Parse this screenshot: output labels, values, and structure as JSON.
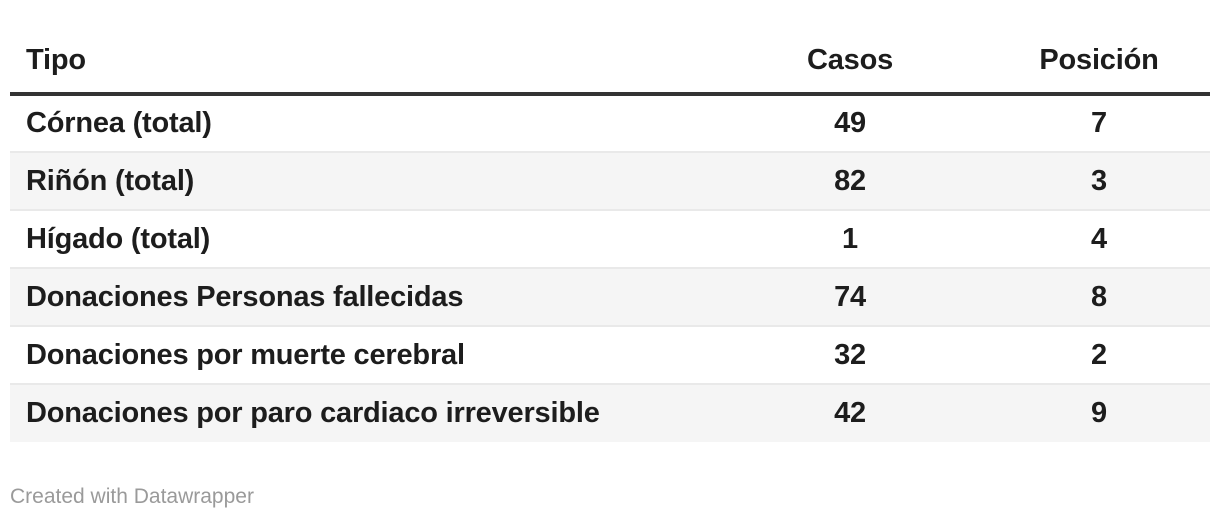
{
  "chart_data": {
    "type": "table",
    "columns": [
      "Tipo",
      "Casos",
      "Posición"
    ],
    "rows": [
      [
        "Córnea (total)",
        49,
        7
      ],
      [
        "Riñón (total)",
        82,
        3
      ],
      [
        "Hígado (total)",
        1,
        4
      ],
      [
        "Donaciones Personas fallecidas",
        74,
        8
      ],
      [
        "Donaciones por muerte cerebral",
        32,
        2
      ],
      [
        "Donaciones por paro cardiaco irreversible",
        42,
        9
      ]
    ],
    "layout": {
      "zebra_striping": true,
      "first_column_align": "left",
      "numeric_columns_align": "center"
    }
  },
  "table": {
    "headers": [
      {
        "label": "Tipo"
      },
      {
        "label": "Casos"
      },
      {
        "label": "Posición"
      }
    ],
    "rows": [
      {
        "tipo": "Córnea (total)",
        "casos": "49",
        "posicion": "7"
      },
      {
        "tipo": "Riñón (total)",
        "casos": "82",
        "posicion": "3"
      },
      {
        "tipo": "Hígado (total)",
        "casos": "1",
        "posicion": "4"
      },
      {
        "tipo": "Donaciones Personas fallecidas",
        "casos": "74",
        "posicion": "8"
      },
      {
        "tipo": "Donaciones por muerte cerebral",
        "casos": "32",
        "posicion": "2"
      },
      {
        "tipo": "Donaciones por paro cardiaco irreversible",
        "casos": "42",
        "posicion": "9"
      }
    ]
  },
  "footer": {
    "attribution": "Created with Datawrapper"
  },
  "colors": {
    "text": "#1d1d1d",
    "header_rule": "#333333",
    "row_stripe": "#f5f5f5",
    "row_divider": "#e9e9e9",
    "attribution_text": "#9a9a9a",
    "background": "#ffffff"
  }
}
